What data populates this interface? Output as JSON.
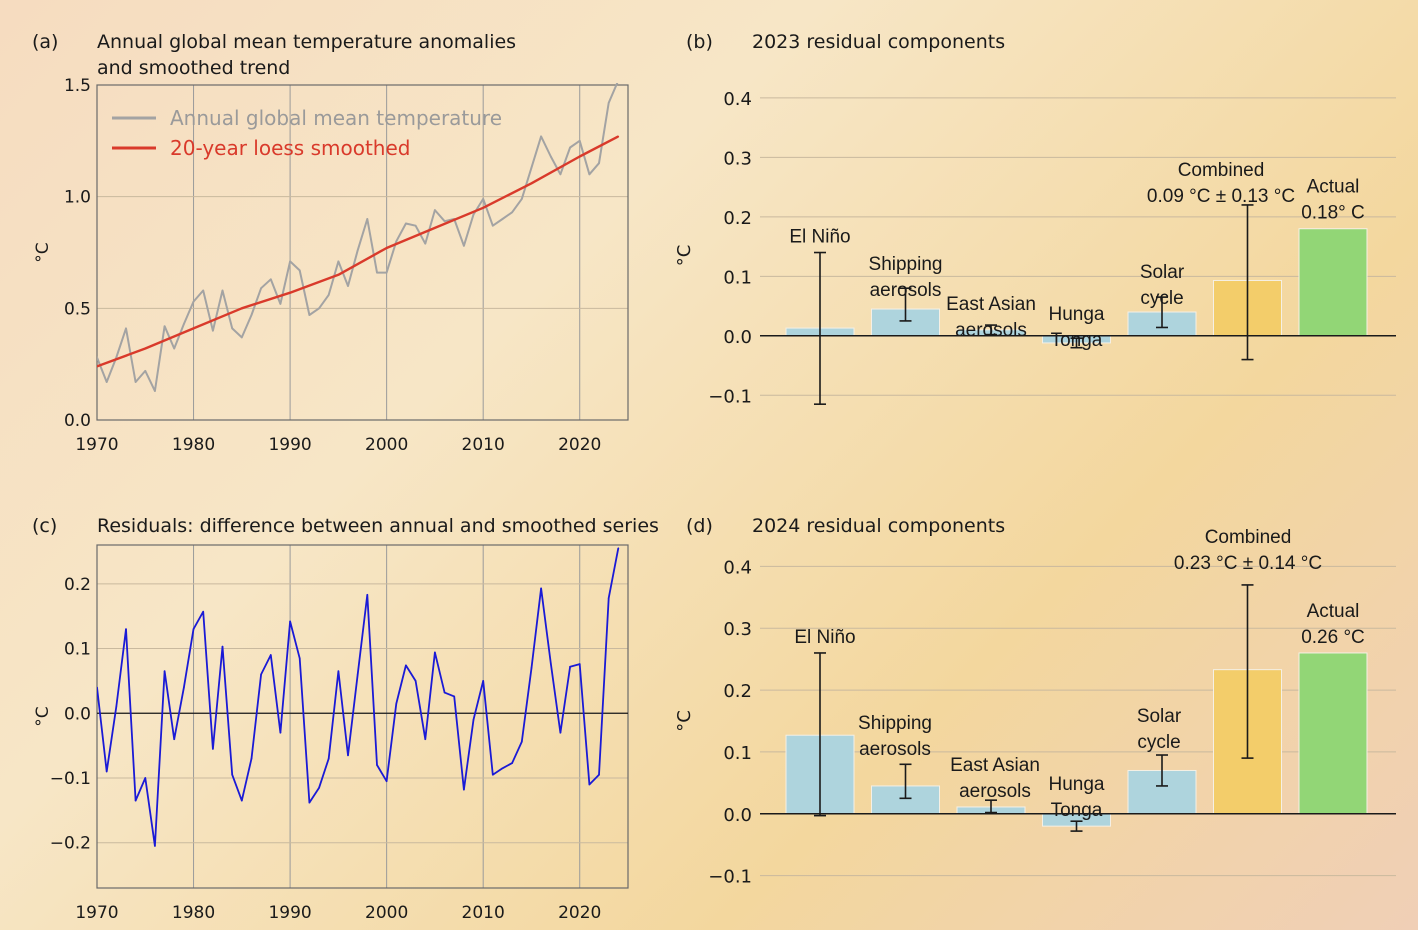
{
  "colors": {
    "annual": "#a3a3a3",
    "smoothed": "#d93a2b",
    "residual": "#1a1ad6",
    "bar_blue": "#aed4dd",
    "bar_yellow": "#f3cd6a",
    "bar_green": "#92d676",
    "grid": "#c9b99e",
    "axis": "#1a1a1a"
  },
  "chart_data": [
    {
      "id": "a",
      "type": "line",
      "panel_label": "(a)",
      "title_lines": [
        "Annual global mean temperature anomalies",
        "and smoothed trend"
      ],
      "ylabel": "°C",
      "xlim": [
        1970,
        2025
      ],
      "ylim": [
        0.0,
        1.5
      ],
      "xticks": [
        1970,
        1980,
        1990,
        2000,
        2010,
        2020
      ],
      "yticks": [
        0.0,
        0.5,
        1.0,
        1.5
      ],
      "ytick_labels": [
        "0.0",
        "0.5",
        "1.0",
        "1.5"
      ],
      "grid": true,
      "legend_position": "top-left",
      "series": [
        {
          "name": "Annual global mean temperature",
          "x": [
            1970,
            1971,
            1972,
            1973,
            1974,
            1975,
            1976,
            1977,
            1978,
            1979,
            1980,
            1981,
            1982,
            1983,
            1984,
            1985,
            1986,
            1987,
            1988,
            1989,
            1990,
            1991,
            1992,
            1993,
            1994,
            1995,
            1996,
            1997,
            1998,
            1999,
            2000,
            2001,
            2002,
            2003,
            2004,
            2005,
            2006,
            2007,
            2008,
            2009,
            2010,
            2011,
            2012,
            2013,
            2014,
            2015,
            2016,
            2017,
            2018,
            2019,
            2020,
            2021,
            2022,
            2023,
            2024
          ],
          "values": [
            0.28,
            0.17,
            0.28,
            0.41,
            0.17,
            0.22,
            0.13,
            0.42,
            0.32,
            0.43,
            0.53,
            0.58,
            0.4,
            0.58,
            0.41,
            0.37,
            0.47,
            0.59,
            0.63,
            0.52,
            0.71,
            0.67,
            0.47,
            0.5,
            0.56,
            0.71,
            0.6,
            0.76,
            0.9,
            0.66,
            0.66,
            0.8,
            0.88,
            0.87,
            0.79,
            0.94,
            0.89,
            0.9,
            0.78,
            0.92,
            0.99,
            0.87,
            0.9,
            0.93,
            0.99,
            1.13,
            1.27,
            1.18,
            1.1,
            1.22,
            1.25,
            1.1,
            1.15,
            1.42,
            1.52
          ]
        },
        {
          "name": "20-year loess smoothed",
          "x": [
            1970,
            1975,
            1980,
            1985,
            1990,
            1995,
            2000,
            2005,
            2010,
            2015,
            2020,
            2024
          ],
          "values": [
            0.24,
            0.32,
            0.41,
            0.5,
            0.57,
            0.65,
            0.77,
            0.86,
            0.95,
            1.06,
            1.18,
            1.27
          ]
        }
      ]
    },
    {
      "id": "c",
      "type": "line",
      "panel_label": "(c)",
      "title_lines": [
        "Residuals: difference between annual and smoothed series"
      ],
      "ylabel": "°C",
      "xlim": [
        1970,
        2025
      ],
      "ylim": [
        -0.27,
        0.26
      ],
      "xticks": [
        1970,
        1980,
        1990,
        2000,
        2010,
        2020
      ],
      "yticks": [
        -0.2,
        -0.1,
        0.0,
        0.1,
        0.2
      ],
      "ytick_labels": [
        "−0.2",
        "−0.1",
        "0.0",
        "0.1",
        "0.2"
      ],
      "grid": true,
      "series": [
        {
          "name": "Residuals",
          "x": [
            1970,
            1971,
            1972,
            1973,
            1974,
            1975,
            1976,
            1977,
            1978,
            1979,
            1980,
            1981,
            1982,
            1983,
            1984,
            1985,
            1986,
            1987,
            1988,
            1989,
            1990,
            1991,
            1992,
            1993,
            1994,
            1995,
            1996,
            1997,
            1998,
            1999,
            2000,
            2001,
            2002,
            2003,
            2004,
            2005,
            2006,
            2007,
            2008,
            2009,
            2010,
            2011,
            2012,
            2013,
            2014,
            2015,
            2016,
            2017,
            2018,
            2019,
            2020,
            2021,
            2022,
            2023,
            2024
          ],
          "values": [
            0.04,
            -0.09,
            0.01,
            0.13,
            -0.135,
            -0.1,
            -0.205,
            0.065,
            -0.04,
            0.04,
            0.13,
            0.157,
            -0.055,
            0.103,
            -0.095,
            -0.135,
            -0.07,
            0.06,
            0.09,
            -0.03,
            0.142,
            0.085,
            -0.138,
            -0.115,
            -0.07,
            0.065,
            -0.065,
            0.06,
            0.183,
            -0.08,
            -0.105,
            0.015,
            0.074,
            0.05,
            -0.04,
            0.094,
            0.032,
            0.026,
            -0.118,
            -0.01,
            0.05,
            -0.095,
            -0.085,
            -0.077,
            -0.044,
            0.07,
            0.193,
            0.077,
            -0.03,
            0.072,
            0.076,
            -0.11,
            -0.095,
            0.178,
            0.255
          ]
        }
      ]
    },
    {
      "id": "b",
      "type": "bar",
      "panel_label": "(b)",
      "title": "2023 residual components",
      "ylabel": "°C",
      "ylim": [
        -0.15,
        0.42
      ],
      "yticks": [
        -0.1,
        0.0,
        0.1,
        0.2,
        0.3,
        0.4
      ],
      "ytick_labels": [
        "−0.1",
        "0.0",
        "0.1",
        "0.2",
        "0.3",
        "0.4"
      ],
      "grid": true,
      "bars": [
        {
          "label_lines": [
            "El Niño"
          ],
          "value": 0.013,
          "err_low": -0.115,
          "err_high": 0.14,
          "color": "blue"
        },
        {
          "label_lines": [
            "Shipping",
            "aerosols"
          ],
          "value": 0.045,
          "err_low": 0.025,
          "err_high": 0.08,
          "color": "blue"
        },
        {
          "label_lines": [
            "East Asian",
            "aerosols"
          ],
          "value": 0.01,
          "err_low": 0.002,
          "err_high": 0.018,
          "color": "blue"
        },
        {
          "label_lines": [
            "Hunga",
            "Tonga"
          ],
          "value": -0.012,
          "err_low": -0.02,
          "err_high": -0.004,
          "color": "blue"
        },
        {
          "label_lines": [
            "Solar",
            "cycle"
          ],
          "value": 0.04,
          "err_low": 0.014,
          "err_high": 0.065,
          "color": "blue"
        },
        {
          "label_lines": [
            "Combined",
            "0.09 °C ± 0.13 °C"
          ],
          "value": 0.093,
          "err_low": -0.04,
          "err_high": 0.22,
          "color": "yellow"
        },
        {
          "label_lines": [
            "Actual",
            "0.18° C"
          ],
          "value": 0.18,
          "err_low": null,
          "err_high": null,
          "color": "green"
        }
      ]
    },
    {
      "id": "d",
      "type": "bar",
      "panel_label": "(d)",
      "title": "2024 residual components",
      "ylabel": "°C",
      "ylim": [
        -0.12,
        0.42
      ],
      "yticks": [
        -0.1,
        0.0,
        0.1,
        0.2,
        0.3,
        0.4
      ],
      "ytick_labels": [
        "−0.1",
        "0.0",
        "0.1",
        "0.2",
        "0.3",
        "0.4"
      ],
      "grid": true,
      "bars": [
        {
          "label_lines": [
            "El Niño"
          ],
          "value": 0.127,
          "err_low": -0.003,
          "err_high": 0.26,
          "color": "blue"
        },
        {
          "label_lines": [
            "Shipping",
            "aerosols"
          ],
          "value": 0.045,
          "err_low": 0.025,
          "err_high": 0.08,
          "color": "blue"
        },
        {
          "label_lines": [
            "East Asian",
            "aerosols"
          ],
          "value": 0.011,
          "err_low": 0.002,
          "err_high": 0.022,
          "color": "blue"
        },
        {
          "label_lines": [
            "Hunga",
            "Tonga"
          ],
          "value": -0.02,
          "err_low": -0.028,
          "err_high": -0.012,
          "color": "blue"
        },
        {
          "label_lines": [
            "Solar",
            "cycle"
          ],
          "value": 0.07,
          "err_low": 0.045,
          "err_high": 0.095,
          "color": "blue"
        },
        {
          "label_lines": [
            "Combined",
            "0.23 °C ± 0.14 °C"
          ],
          "value": 0.233,
          "err_low": 0.09,
          "err_high": 0.37,
          "color": "yellow"
        },
        {
          "label_lines": [
            "Actual",
            "0.26 °C"
          ],
          "value": 0.26,
          "err_low": null,
          "err_high": null,
          "color": "green"
        }
      ]
    }
  ]
}
